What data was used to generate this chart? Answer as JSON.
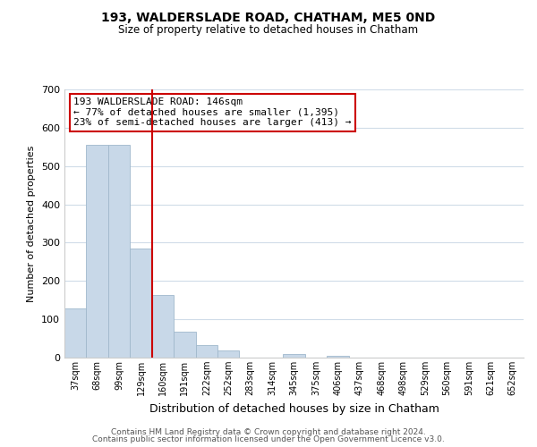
{
  "title": "193, WALDERSLADE ROAD, CHATHAM, ME5 0ND",
  "subtitle": "Size of property relative to detached houses in Chatham",
  "xlabel": "Distribution of detached houses by size in Chatham",
  "ylabel": "Number of detached properties",
  "bar_labels": [
    "37sqm",
    "68sqm",
    "99sqm",
    "129sqm",
    "160sqm",
    "191sqm",
    "222sqm",
    "252sqm",
    "283sqm",
    "314sqm",
    "345sqm",
    "375sqm",
    "406sqm",
    "437sqm",
    "468sqm",
    "498sqm",
    "529sqm",
    "560sqm",
    "591sqm",
    "621sqm",
    "652sqm"
  ],
  "bar_values": [
    128,
    555,
    555,
    285,
    163,
    68,
    32,
    18,
    0,
    0,
    10,
    0,
    5,
    0,
    0,
    0,
    0,
    0,
    0,
    0,
    0
  ],
  "bar_color": "#c8d8e8",
  "bar_edge_color": "#a0b8cc",
  "vline_color": "#cc0000",
  "annotation_text": "193 WALDERSLADE ROAD: 146sqm\n← 77% of detached houses are smaller (1,395)\n23% of semi-detached houses are larger (413) →",
  "annotation_box_color": "#ffffff",
  "annotation_box_edge": "#cc0000",
  "ylim": [
    0,
    700
  ],
  "yticks": [
    0,
    100,
    200,
    300,
    400,
    500,
    600,
    700
  ],
  "footer_line1": "Contains HM Land Registry data © Crown copyright and database right 2024.",
  "footer_line2": "Contains public sector information licensed under the Open Government Licence v3.0.",
  "background_color": "#ffffff",
  "grid_color": "#d0dce8"
}
